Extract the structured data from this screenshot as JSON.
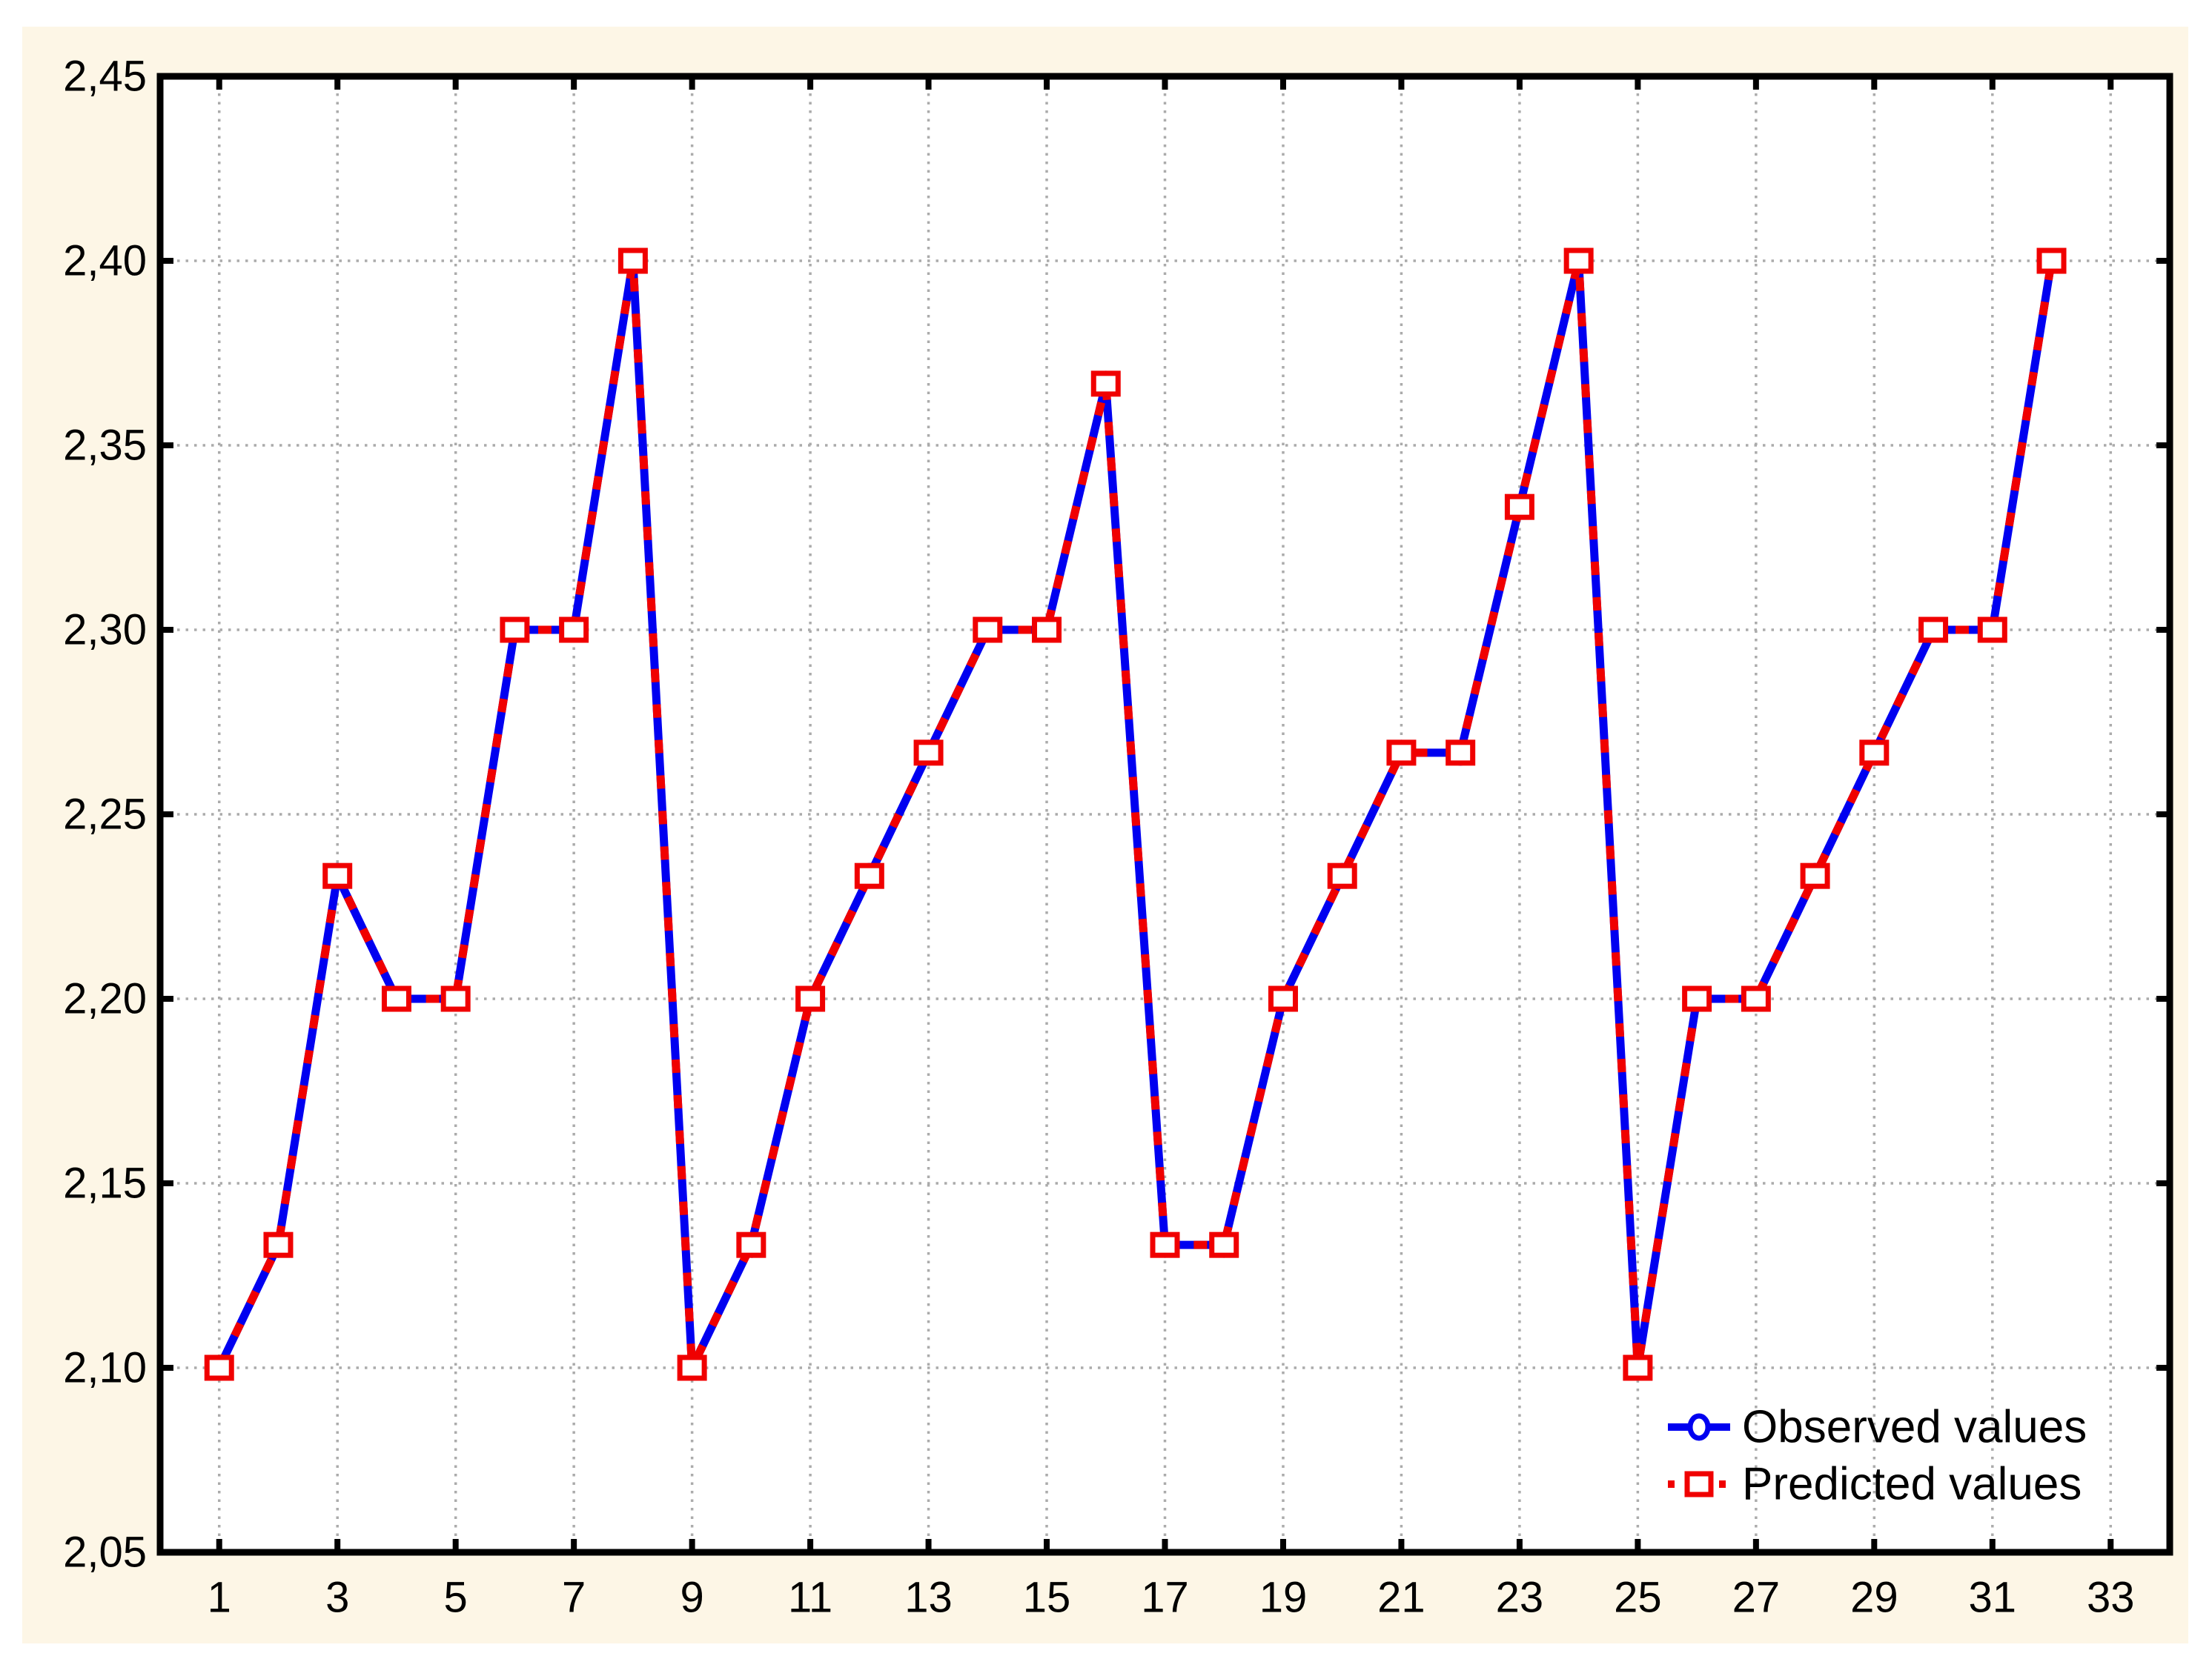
{
  "chart_data": {
    "type": "line",
    "title": "",
    "xlabel": "",
    "ylabel": "",
    "x": [
      1,
      2,
      3,
      4,
      5,
      6,
      7,
      8,
      9,
      10,
      11,
      12,
      13,
      14,
      15,
      16,
      17,
      18,
      19,
      20,
      21,
      22,
      23,
      24,
      25,
      26,
      27,
      28,
      29,
      30,
      31,
      32
    ],
    "series": [
      {
        "name": "Observed values",
        "color": "#0000F0",
        "marker": "circle",
        "line_style": "solid",
        "values": [
          2.1,
          2.1333,
          2.2333,
          2.2,
          2.2,
          2.3,
          2.3,
          2.4,
          2.1,
          2.1333,
          2.2,
          2.2333,
          2.2667,
          2.3,
          2.3,
          2.3667,
          2.1333,
          2.1333,
          2.2,
          2.2333,
          2.2667,
          2.2667,
          2.3333,
          2.4,
          2.1,
          2.2,
          2.2,
          2.2333,
          2.2667,
          2.3,
          2.3,
          2.4
        ]
      },
      {
        "name": "Predicted values",
        "color": "#F00000",
        "marker": "square",
        "line_style": "dotted",
        "values": [
          2.1,
          2.1333,
          2.2333,
          2.2,
          2.2,
          2.3,
          2.3,
          2.4,
          2.1,
          2.1333,
          2.2,
          2.2333,
          2.2667,
          2.3,
          2.3,
          2.3667,
          2.1333,
          2.1333,
          2.2,
          2.2333,
          2.2667,
          2.2667,
          2.3333,
          2.4,
          2.1,
          2.2,
          2.2,
          2.2333,
          2.2667,
          2.3,
          2.3,
          2.4
        ]
      }
    ],
    "x_range": [
      0,
      34
    ],
    "y_range": [
      2.05,
      2.45
    ],
    "x_ticks": [
      1,
      3,
      5,
      7,
      9,
      11,
      13,
      15,
      17,
      19,
      21,
      23,
      25,
      27,
      29,
      31,
      33
    ],
    "x_tick_labels": [
      "1",
      "3",
      "5",
      "7",
      "9",
      "11",
      "13",
      "15",
      "17",
      "19",
      "21",
      "23",
      "25",
      "27",
      "29",
      "31",
      "33"
    ],
    "y_ticks": [
      2.05,
      2.1,
      2.15,
      2.2,
      2.25,
      2.3,
      2.35,
      2.4,
      2.45
    ],
    "y_tick_labels": [
      "2,05",
      "2,10",
      "2,15",
      "2,20",
      "2,25",
      "2,30",
      "2,35",
      "2,40",
      "2,45"
    ],
    "decimal_separator": "comma",
    "grid": "dotted",
    "grid_color": "#ABABAB",
    "legend_position": "bottom-right",
    "panel_background": "#FDF6E6",
    "plot_background": "#FFFFFF",
    "frame_color": "#000000"
  }
}
